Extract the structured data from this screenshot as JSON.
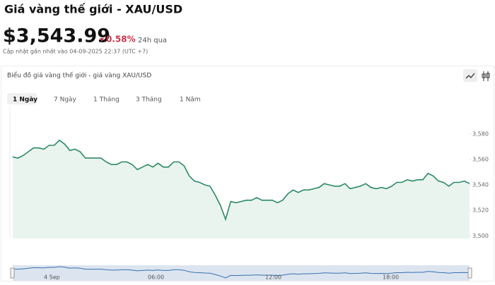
{
  "header": {
    "title": "Giá vàng thế giới - XAU/USD",
    "price": "$3,543.99",
    "change": "0.58%",
    "change_period": "24h qua",
    "updated": "Cập nhật gần nhất vào 04-09-2025 22:37 (UTC +7)"
  },
  "panel": {
    "title": "Biểu đồ giá vàng thế giới - giá vàng XAU/USD",
    "ranges": [
      "1 Ngày",
      "7 Ngày",
      "1 Tháng",
      "3 Tháng",
      "1 Năm"
    ]
  },
  "chart_data": {
    "type": "line",
    "color": "#2b8a66",
    "fill": "#eaf4ee",
    "values": [
      3562,
      3561,
      3563,
      3566,
      3569,
      3569,
      3568,
      3571,
      3571,
      3575,
      3572,
      3567,
      3568,
      3566,
      3561,
      3561,
      3561,
      3561,
      3558,
      3556,
      3556,
      3558,
      3558,
      3556,
      3552,
      3554,
      3556,
      3554,
      3557,
      3554,
      3554,
      3558,
      3558,
      3555,
      3547,
      3543,
      3542,
      3540,
      3539,
      3532,
      3524,
      3513,
      3527,
      3526,
      3527,
      3528,
      3528,
      3530,
      3528,
      3528,
      3528,
      3526,
      3528,
      3533,
      3536,
      3534,
      3536,
      3536,
      3537,
      3538,
      3541,
      3540,
      3539,
      3539,
      3541,
      3537,
      3538,
      3539,
      3541,
      3538,
      3537,
      3538,
      3537,
      3539,
      3542,
      3542,
      3544,
      3543,
      3544,
      3544,
      3549,
      3547,
      3543,
      3542,
      3539,
      3542,
      3542,
      3543,
      3541
    ],
    "ylim": [
      3498,
      3602
    ],
    "yticks": [
      {
        "value": 3500,
        "label": "3,500"
      },
      {
        "value": 3520,
        "label": "3,520"
      },
      {
        "value": 3540,
        "label": "3,540"
      },
      {
        "value": 3560,
        "label": "3,560"
      },
      {
        "value": 3580,
        "label": "3,580"
      }
    ],
    "navigator_labels": [
      "4 Sep",
      "06:00",
      "12:00",
      "18:00"
    ]
  }
}
